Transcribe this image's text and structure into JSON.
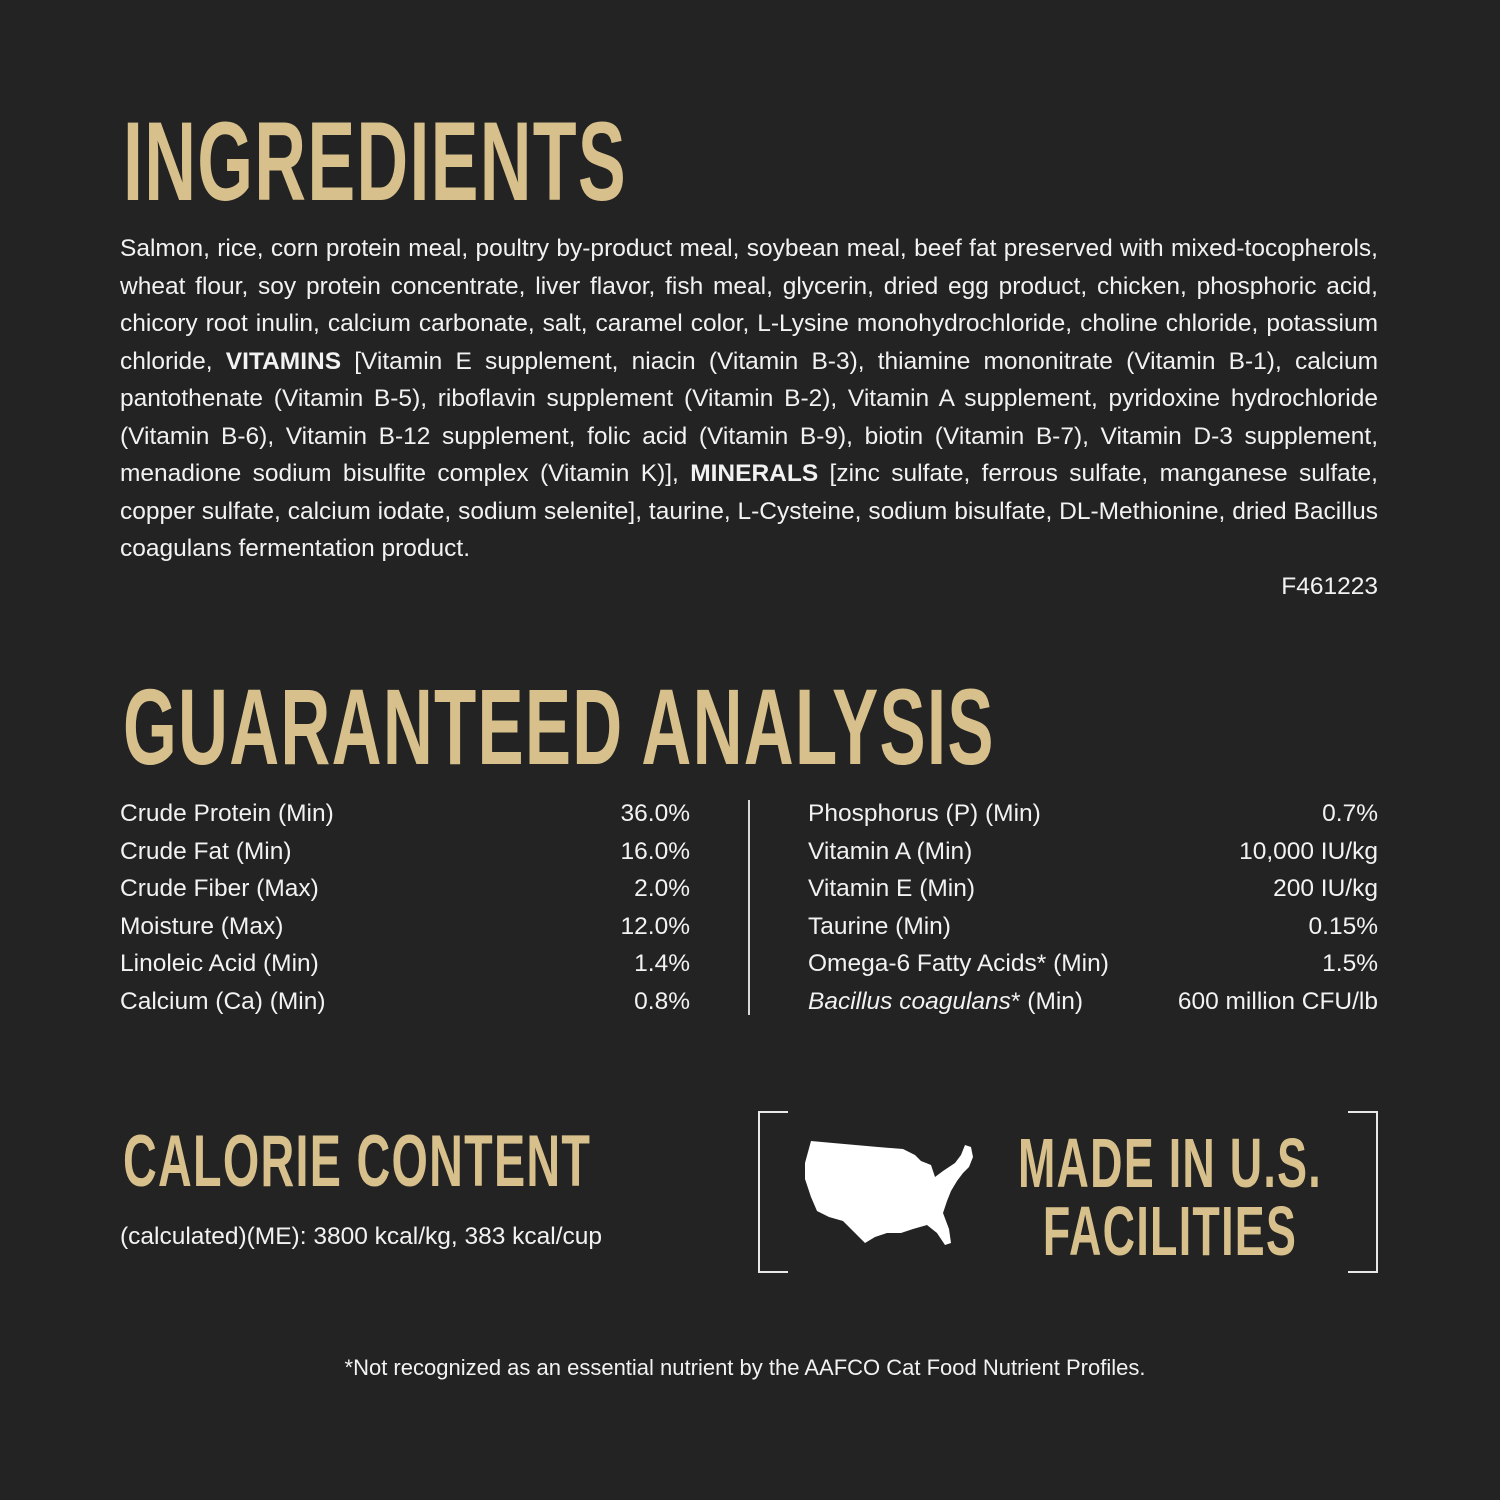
{
  "colors": {
    "background": "#222322",
    "heading_gold": "#d7c08c",
    "text": "#f2f2f2"
  },
  "ingredients": {
    "title": "INGREDIENTS",
    "text_part1": "Salmon, rice, corn protein meal, poultry by-product meal, soybean meal, beef fat preserved with mixed-tocopherols, wheat flour, soy protein concentrate, liver flavor, fish meal, glycerin, dried egg product, chicken, phosphoric acid, chicory root inulin, calcium carbonate, salt, caramel color, L-Lysine monohydrochloride, choline chloride, potassium chloride, ",
    "vitamins_label": "VITAMINS",
    "text_part2": " [Vitamin E supplement, niacin (Vitamin B-3), thiamine mononitrate (Vitamin B-1), calcium pantothenate (Vitamin B-5), riboflavin supplement (Vitamin B-2), Vitamin A supplement, pyridoxine hydrochloride (Vitamin B-6), Vitamin B-12 supplement, folic acid (Vitamin B-9), biotin (Vitamin B-7), Vitamin D-3 supplement, menadione sodium bisulfite complex (Vitamin K)], ",
    "minerals_label": "MINERALS",
    "text_part3": " [zinc sulfate, ferrous sulfate, manganese sulfate, copper sulfate, calcium iodate, sodium selenite], taurine, L-Cysteine, sodium bisulfate, DL-Methionine, dried Bacillus coagulans fermentation product.",
    "code": "F461223"
  },
  "analysis": {
    "title": "GUARANTEED ANALYSIS",
    "left": [
      {
        "label": "Crude Protein (Min)",
        "value": "36.0%"
      },
      {
        "label": "Crude Fat (Min)",
        "value": "16.0%"
      },
      {
        "label": "Crude Fiber (Max)",
        "value": "2.0%"
      },
      {
        "label": "Moisture (Max)",
        "value": "12.0%"
      },
      {
        "label": "Linoleic Acid (Min)",
        "value": "1.4%"
      },
      {
        "label": "Calcium (Ca) (Min)",
        "value": "0.8%"
      }
    ],
    "right": [
      {
        "label": "Phosphorus (P) (Min)",
        "value": "0.7%"
      },
      {
        "label": "Vitamin A (Min)",
        "value": "10,000 IU/kg"
      },
      {
        "label": "Vitamin E (Min)",
        "value": "200 IU/kg"
      },
      {
        "label": "Taurine (Min)",
        "value": "0.15%"
      },
      {
        "label": "Omega-6 Fatty Acids* (Min)",
        "value": "1.5%"
      },
      {
        "label_italic": "Bacillus coagulans",
        "label": "* (Min)",
        "value": "600 million CFU/lb"
      }
    ]
  },
  "calorie": {
    "title": "CALORIE CONTENT",
    "text": "(calculated)(ME): 3800 kcal/kg, 383 kcal/cup"
  },
  "made_in": {
    "line1": "MADE IN U.S.",
    "line2": "FACILITIES",
    "icon": "us-map-icon"
  },
  "footnote": "*Not recognized as an essential nutrient by the AAFCO Cat Food Nutrient Profiles."
}
